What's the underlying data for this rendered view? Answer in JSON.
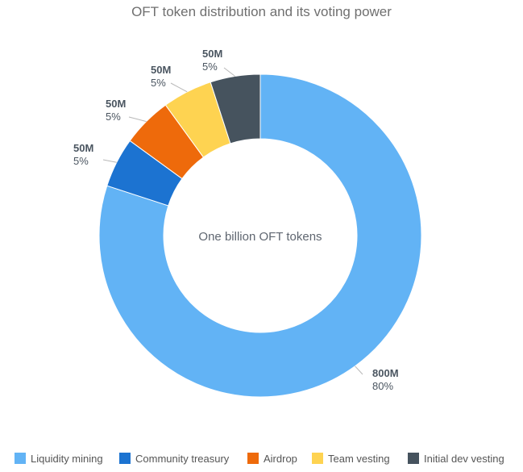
{
  "chart_data": {
    "type": "pie",
    "subtype": "donut",
    "title": "OFT token distribution and its voting power",
    "center_text": "One billion OFT tokens",
    "legend_position": "bottom",
    "slices": [
      {
        "name": "Liquidity mining",
        "value": 800,
        "value_label": "800M",
        "percent_label": "80%",
        "color": "#62b3f5"
      },
      {
        "name": "Community treasury",
        "value": 50,
        "value_label": "50M",
        "percent_label": "5%",
        "color": "#1c73d1"
      },
      {
        "name": "Airdrop",
        "value": 50,
        "value_label": "50M",
        "percent_label": "5%",
        "color": "#ee6a0b"
      },
      {
        "name": "Team vesting",
        "value": 50,
        "value_label": "50M",
        "percent_label": "5%",
        "color": "#fed351"
      },
      {
        "name": "Initial dev vesting",
        "value": 50,
        "value_label": "50M",
        "percent_label": "5%",
        "color": "#46535e"
      }
    ]
  }
}
